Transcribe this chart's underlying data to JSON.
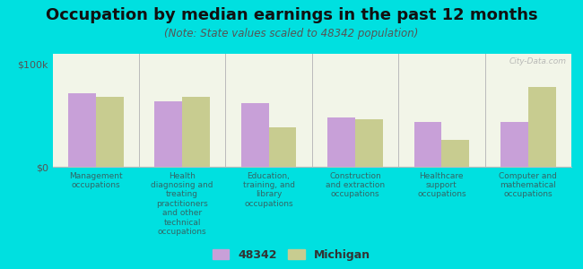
{
  "title": "Occupation by median earnings in the past 12 months",
  "subtitle": "(Note: State values scaled to 48342 population)",
  "background_color": "#00e0e0",
  "plot_bg_color": "#f2f5e8",
  "bar_color_48342": "#c8a0d8",
  "bar_color_michigan": "#c8cc90",
  "watermark": "City-Data.com",
  "categories": [
    "Management\noccupations",
    "Health\ndiagnosing and\ntreating\npractitioners\nand other\ntechnical\noccupations",
    "Education,\ntraining, and\nlibrary\noccupations",
    "Construction\nand extraction\noccupations",
    "Healthcare\nsupport\noccupations",
    "Computer and\nmathematical\noccupations"
  ],
  "values_48342": [
    72000,
    64000,
    62000,
    48000,
    44000,
    44000
  ],
  "values_michigan": [
    68000,
    68000,
    38000,
    46000,
    26000,
    78000
  ],
  "ylim": [
    0,
    110000
  ],
  "legend_label_1": "48342",
  "legend_label_2": "Michigan",
  "bar_width": 0.32,
  "title_fontsize": 13,
  "subtitle_fontsize": 8.5,
  "tick_label_fontsize": 6.5,
  "legend_fontsize": 9,
  "separator_color": "#bbbbbb",
  "spine_color": "#bbbbbb",
  "ytick_labels": [
    "$0",
    "$100k"
  ],
  "ytick_values": [
    0,
    100000
  ]
}
